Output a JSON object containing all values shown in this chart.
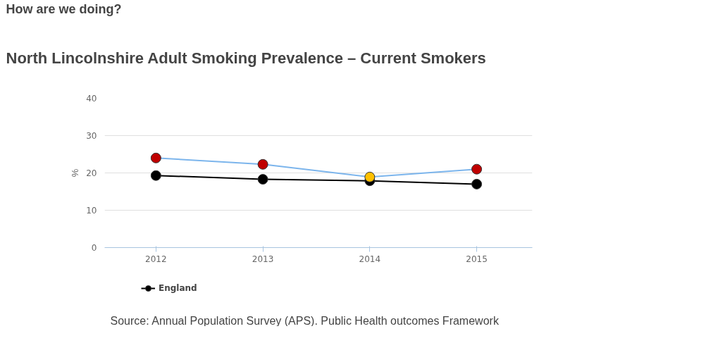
{
  "chart_data": {
    "type": "line",
    "title": "How are we doing?",
    "subtitle": "North Lincolnshire Adult Smoking Prevalence – Current Smokers",
    "ylabel": "%",
    "categories": [
      "2012",
      "2013",
      "2014",
      "2015"
    ],
    "series": [
      {
        "color": "#7cb5ec",
        "colors": [
          "#c00000",
          "#c00000",
          "#ffc000",
          "#c00000"
        ],
        "values": [
          24.0,
          22.3,
          18.9,
          21.0
        ]
      },
      {
        "name": "England",
        "color": "#000000",
        "values": [
          19.3,
          18.3,
          17.9,
          17.0
        ]
      }
    ],
    "ylim": [
      0,
      40
    ],
    "yticks": [
      0,
      10,
      20,
      30,
      40
    ],
    "grid": "y",
    "legend": "bottom",
    "marker": "circle",
    "line_style": "solid",
    "annotations": [
      "Source: Annual Population Survey (APS). Public Health outcomes Framework"
    ]
  }
}
